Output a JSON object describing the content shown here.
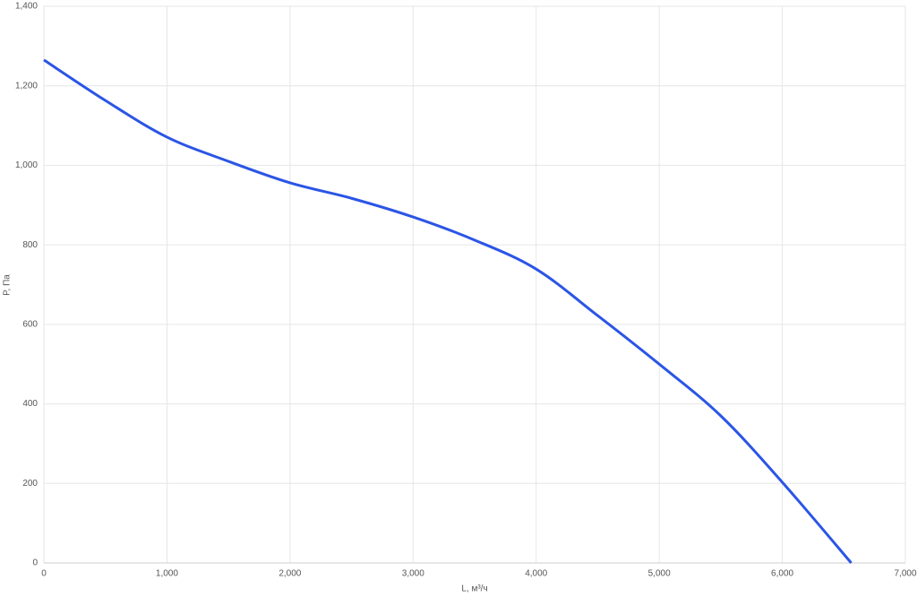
{
  "chart_data": {
    "type": "line",
    "x_label": "L, м³/ч",
    "y_label": "P, Па",
    "x": [
      0,
      500,
      1000,
      1500,
      2000,
      2500,
      3000,
      3500,
      4000,
      4500,
      5000,
      5500,
      6000,
      6560
    ],
    "series": [
      {
        "name": "P",
        "color": "#2b55e6",
        "values": [
          1265,
          1163,
          1071,
          1010,
          956,
          917,
          870,
          812,
          739,
          622,
          500,
          370,
          203,
          0
        ]
      }
    ],
    "xlim": [
      0,
      7000
    ],
    "xticks": [
      0,
      {
        "value": 1000,
        "label": "1,000"
      },
      {
        "value": 2000,
        "label": "2,000"
      },
      {
        "value": 3000,
        "label": "3,000"
      },
      {
        "value": 4000,
        "label": "4,000"
      },
      {
        "value": 5000,
        "label": "5,000"
      },
      {
        "value": 6000,
        "label": "6,000"
      },
      {
        "value": 7000,
        "label": "7,000"
      }
    ],
    "ylim": [
      0,
      1400
    ],
    "yticks": [
      0,
      200,
      400,
      600,
      800,
      {
        "value": 1000,
        "label": "1,000"
      },
      {
        "value": 1200,
        "label": "1,200"
      },
      {
        "value": 1400,
        "label": "1,400"
      }
    ],
    "grid": true
  }
}
